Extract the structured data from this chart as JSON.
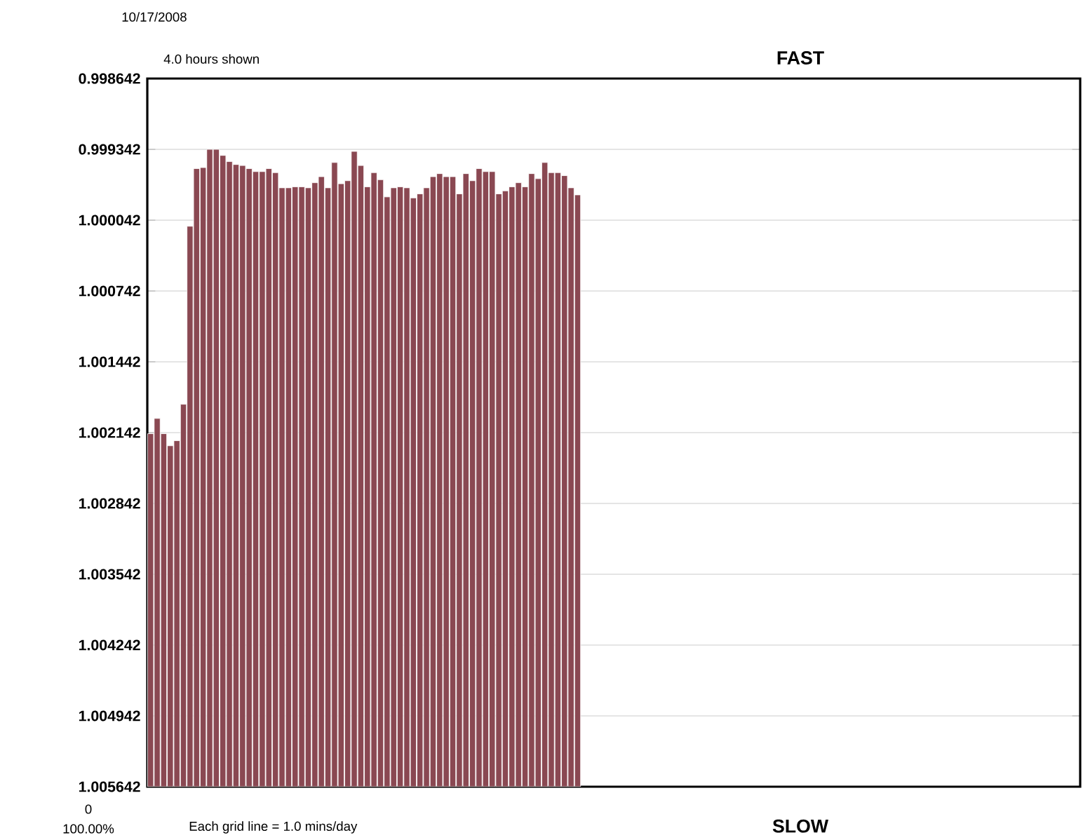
{
  "chart_data": {
    "type": "bar",
    "title": "FAST",
    "xlabel": "SLOW",
    "annotations": [
      "10/17/2008",
      "4.0 hours shown",
      "Each grid line = 1.0 mins/day",
      "0",
      "100.00%"
    ],
    "categories": [
      null,
      null,
      null,
      null,
      null,
      null,
      null,
      null,
      null,
      null,
      null,
      null,
      null,
      null,
      null,
      null,
      null,
      null,
      null,
      null,
      null,
      null,
      null,
      null,
      null,
      null,
      null,
      null,
      null,
      null,
      null,
      null,
      null,
      null,
      null,
      null,
      null,
      null,
      null,
      null,
      null,
      null,
      null,
      null,
      null,
      null,
      null,
      null,
      null,
      null,
      null,
      null,
      null,
      null,
      null,
      null,
      null,
      null,
      null,
      null,
      null,
      null,
      null,
      null,
      null,
      null,
      null,
      null,
      null,
      null,
      null,
      null,
      null,
      null,
      null,
      null,
      null,
      null,
      null,
      null,
      null,
      null,
      null,
      null,
      null,
      null,
      null,
      null,
      null,
      null,
      null,
      null,
      null,
      null,
      null,
      null,
      null,
      null,
      null,
      null,
      null,
      null,
      null,
      null,
      null,
      null,
      null,
      null,
      null,
      null,
      null,
      null,
      null,
      null,
      null,
      null,
      null,
      null,
      null,
      null,
      null,
      null,
      null,
      null,
      null,
      null,
      null,
      null,
      null,
      null,
      null,
      null,
      null,
      null,
      null,
      null,
      null,
      null,
      null,
      null,
      null,
      null
    ],
    "base": [
      1.005642,
      1.005642,
      1.005642,
      1.005642,
      1.005642,
      1.005642,
      1.005642,
      1.005642,
      1.005642,
      1.005642,
      1.005642,
      1.005642,
      1.005642,
      1.005642,
      1.005642,
      1.005642,
      1.005642,
      1.005642,
      1.005642,
      1.005642,
      1.005642,
      1.005642,
      1.005642,
      1.005642,
      1.005642,
      1.005642,
      1.005642,
      1.005642,
      1.005642,
      1.005642,
      1.005642,
      1.005642,
      1.005642,
      1.005642,
      1.005642,
      1.005642,
      1.005642,
      1.005642,
      1.005642,
      1.005642,
      1.005642,
      1.005642,
      1.005642,
      1.005642,
      1.005642,
      1.005642,
      1.005642,
      1.005642,
      1.005642,
      1.005642,
      1.005642,
      1.005642,
      1.005642,
      1.005642,
      1.005642,
      1.005642,
      1.005642,
      1.005642,
      1.005642,
      1.005642,
      1.005642,
      1.005642,
      1.005642,
      1.005642,
      1.005642,
      1.005642,
      null,
      null,
      null,
      null,
      null,
      null,
      null,
      null,
      null,
      null,
      null,
      null,
      null,
      null,
      null,
      null,
      null,
      null,
      null,
      null,
      null,
      null,
      null,
      null,
      null,
      null,
      null,
      null,
      null,
      null,
      null,
      null,
      null,
      null,
      null,
      null,
      null,
      null,
      null,
      null,
      null,
      null,
      null,
      null,
      null,
      null,
      null,
      null,
      null,
      null,
      null,
      null,
      null,
      null,
      null,
      null,
      null,
      null,
      null,
      null,
      null,
      null,
      null,
      null,
      null,
      null,
      null,
      null,
      null,
      null,
      null,
      null,
      null,
      null,
      null,
      null
    ],
    "values": [
      -0.00349,
      -0.00364,
      -0.00349,
      -0.00337,
      -0.00342,
      -0.00378,
      -0.00554,
      -0.00611,
      -0.00612,
      -0.0063,
      -0.0063,
      -0.00624,
      -0.00618,
      -0.00615,
      -0.00614,
      -0.00611,
      -0.00608,
      -0.00608,
      -0.00611,
      -0.00607,
      -0.00592,
      -0.00592,
      -0.00593,
      -0.00593,
      -0.00592,
      -0.00597,
      -0.00603,
      -0.00592,
      -0.00617,
      -0.00596,
      -0.00599,
      -0.00628,
      -0.00614,
      -0.00593,
      -0.00607,
      -0.006,
      -0.00583,
      -0.00592,
      -0.00593,
      -0.00592,
      -0.00582,
      -0.00586,
      -0.00592,
      -0.00603,
      -0.00606,
      -0.00603,
      -0.00603,
      -0.00586,
      -0.00606,
      -0.00599,
      -0.00611,
      -0.00608,
      -0.00608,
      -0.00586,
      -0.00589,
      -0.00593,
      -0.00597,
      -0.00593,
      -0.00606,
      -0.00601,
      -0.00617,
      -0.00607,
      -0.00607,
      -0.00604,
      -0.00592,
      -0.00585,
      null,
      null,
      null,
      null,
      null,
      null,
      null,
      null,
      null,
      null,
      null,
      null,
      null,
      null,
      null,
      null,
      null,
      null,
      null,
      null,
      null,
      null,
      null,
      null,
      null,
      null,
      null,
      null,
      null,
      null,
      null,
      null,
      null,
      null,
      null,
      null,
      null,
      null,
      null,
      null,
      null,
      null,
      null,
      null,
      null,
      null,
      null,
      null,
      null,
      null,
      null,
      null,
      null,
      null,
      null,
      null,
      null,
      null,
      null,
      null,
      null,
      null,
      null,
      null,
      null,
      null,
      null,
      null,
      null,
      null,
      null,
      null,
      null,
      null,
      null,
      null
    ],
    "color": "#8a4852",
    "ylim": [
      1.005642,
      0.998642
    ],
    "yticks": [
      0.998642,
      0.999342,
      1.000042,
      1.000742,
      1.001442,
      1.002142,
      1.002842,
      1.003542,
      1.004242,
      1.004942,
      1.005642
    ],
    "grid": "y",
    "tick_labels": "y"
  }
}
